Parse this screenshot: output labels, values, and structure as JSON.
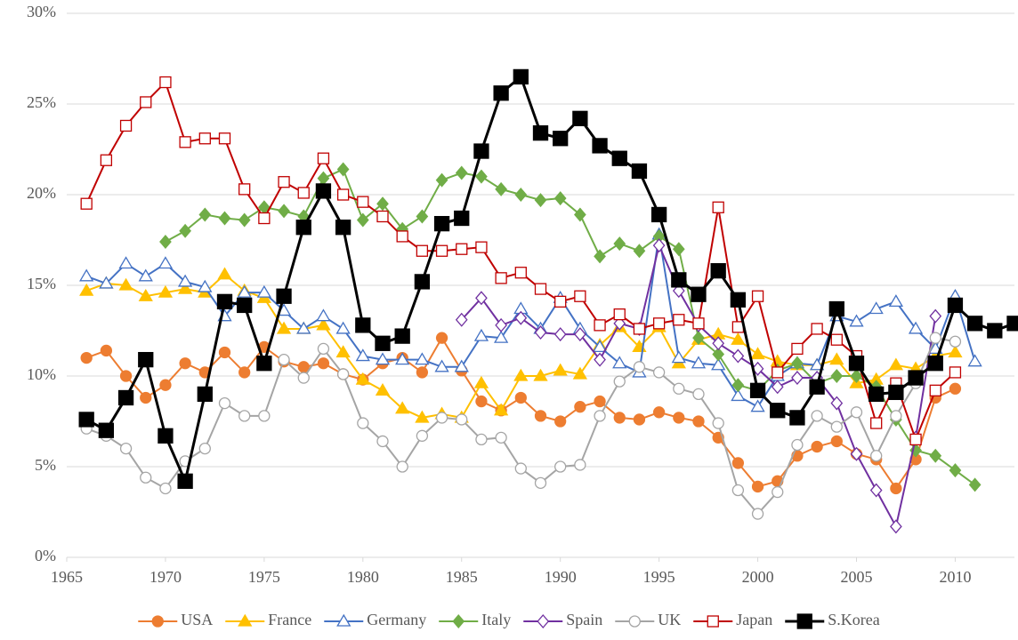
{
  "chart_data": {
    "type": "line",
    "x": [
      1966,
      1967,
      1968,
      1969,
      1970,
      1971,
      1972,
      1973,
      1974,
      1975,
      1976,
      1977,
      1978,
      1979,
      1980,
      1981,
      1982,
      1983,
      1984,
      1985,
      1986,
      1987,
      1988,
      1989,
      1990,
      1991,
      1992,
      1993,
      1994,
      1995,
      1996,
      1997,
      1998,
      1999,
      2000,
      2001,
      2002,
      2003,
      2004,
      2005,
      2006,
      2007,
      2008,
      2009,
      2010,
      2011,
      2012,
      2013
    ],
    "xlim": [
      1965,
      2013
    ],
    "xticks": [
      1965,
      1970,
      1975,
      1980,
      1985,
      1990,
      1995,
      2000,
      2005,
      2010
    ],
    "ylim": [
      0,
      30
    ],
    "yticks": [
      {
        "value": 0,
        "label": "0%"
      },
      {
        "value": 5,
        "label": "5%"
      },
      {
        "value": 10,
        "label": "10%"
      },
      {
        "value": 15,
        "label": "15%"
      },
      {
        "value": 20,
        "label": "20%"
      },
      {
        "value": 25,
        "label": "25%"
      },
      {
        "value": 30,
        "label": "30%"
      }
    ],
    "grid": true,
    "legend": "bottom",
    "series": [
      {
        "name": "USA",
        "color": "#ed7d31",
        "marker": "circle",
        "filled": true,
        "values": [
          11.0,
          11.4,
          10.0,
          8.8,
          9.5,
          10.7,
          10.2,
          11.3,
          10.2,
          11.6,
          10.8,
          10.5,
          10.7,
          10.1,
          9.8,
          10.7,
          11.0,
          10.2,
          12.1,
          10.3,
          8.6,
          8.1,
          8.8,
          7.8,
          7.5,
          8.3,
          8.6,
          7.7,
          7.6,
          8.0,
          7.7,
          7.5,
          6.6,
          5.2,
          3.9,
          4.2,
          5.6,
          6.1,
          6.4,
          5.7,
          5.4,
          3.8,
          5.4,
          8.8,
          9.3,
          null,
          null,
          null
        ]
      },
      {
        "name": "France",
        "color": "#ffc000",
        "marker": "triangle",
        "filled": true,
        "values": [
          14.7,
          15.1,
          15.0,
          14.4,
          14.6,
          14.8,
          14.6,
          15.6,
          14.7,
          14.3,
          12.6,
          12.6,
          12.8,
          11.3,
          9.8,
          9.2,
          8.2,
          7.7,
          7.9,
          7.7,
          9.6,
          8.1,
          10.0,
          10.0,
          10.3,
          10.1,
          11.7,
          12.7,
          11.6,
          12.7,
          10.7,
          12.0,
          12.3,
          12.0,
          11.2,
          10.8,
          10.6,
          10.6,
          10.9,
          9.6,
          9.8,
          10.6,
          10.4,
          11.1,
          11.3,
          null,
          null,
          null
        ]
      },
      {
        "name": "Germany",
        "color": "#4472c4",
        "marker": "triangle",
        "filled": false,
        "values": [
          15.5,
          15.1,
          16.2,
          15.5,
          16.2,
          15.2,
          14.9,
          13.3,
          14.6,
          14.6,
          13.6,
          12.6,
          13.3,
          12.6,
          11.1,
          10.9,
          10.9,
          10.9,
          10.5,
          10.5,
          12.2,
          12.1,
          13.7,
          12.6,
          14.3,
          12.6,
          11.6,
          10.7,
          10.2,
          17.8,
          11.0,
          10.7,
          10.6,
          8.9,
          8.3,
          10.0,
          10.7,
          10.6,
          13.3,
          13.0,
          13.7,
          14.1,
          12.6,
          11.5,
          14.4,
          10.8,
          null,
          null
        ]
      },
      {
        "name": "Italy",
        "color": "#70ad47",
        "marker": "diamond",
        "filled": true,
        "values": [
          null,
          null,
          null,
          null,
          17.4,
          18.0,
          18.9,
          18.7,
          18.6,
          19.3,
          19.1,
          18.8,
          20.9,
          21.4,
          18.6,
          19.5,
          18.1,
          18.8,
          20.8,
          21.2,
          21.0,
          20.3,
          20.0,
          19.7,
          19.8,
          18.9,
          16.6,
          17.3,
          16.9,
          17.7,
          17.0,
          12.1,
          11.2,
          9.5,
          9.2,
          10.3,
          10.7,
          9.6,
          10.0,
          10.0,
          9.4,
          7.6,
          5.9,
          5.6,
          4.8,
          4.0,
          null,
          null
        ]
      },
      {
        "name": "Spain",
        "color": "#7030a0",
        "marker": "diamond",
        "filled": false,
        "values": [
          null,
          null,
          null,
          null,
          null,
          null,
          null,
          null,
          null,
          null,
          null,
          null,
          null,
          null,
          null,
          null,
          null,
          null,
          null,
          13.1,
          14.3,
          12.8,
          13.2,
          12.4,
          12.3,
          12.3,
          10.9,
          12.9,
          12.6,
          17.2,
          14.7,
          12.8,
          11.8,
          11.1,
          10.4,
          9.4,
          9.9,
          9.9,
          8.5,
          5.7,
          3.7,
          1.7,
          6.6,
          13.3,
          null,
          null,
          null,
          null
        ]
      },
      {
        "name": "UK",
        "color": "#a5a5a5",
        "marker": "circle",
        "filled": false,
        "values": [
          7.1,
          6.7,
          6.0,
          4.4,
          3.8,
          5.3,
          6.0,
          8.5,
          7.8,
          7.8,
          10.9,
          9.9,
          11.5,
          10.1,
          7.4,
          6.4,
          5.0,
          6.7,
          7.7,
          7.6,
          6.5,
          6.6,
          4.9,
          4.1,
          5.0,
          5.1,
          7.8,
          9.7,
          10.5,
          10.2,
          9.3,
          9.0,
          7.4,
          3.7,
          2.4,
          3.6,
          6.2,
          7.8,
          7.2,
          8.0,
          5.6,
          7.8,
          9.6,
          12.1,
          11.9,
          null,
          null,
          null
        ]
      },
      {
        "name": "Japan",
        "color": "#c00000",
        "marker": "square",
        "filled": false,
        "values": [
          19.5,
          21.9,
          23.8,
          25.1,
          26.2,
          22.9,
          23.1,
          23.1,
          20.3,
          18.7,
          20.7,
          20.1,
          22.0,
          20.0,
          19.6,
          18.8,
          17.7,
          16.9,
          16.9,
          17.0,
          17.1,
          15.4,
          15.7,
          14.8,
          14.1,
          14.4,
          12.8,
          13.4,
          12.6,
          12.9,
          13.1,
          12.9,
          19.3,
          12.7,
          14.4,
          10.2,
          11.5,
          12.6,
          12.0,
          11.1,
          7.4,
          9.6,
          6.5,
          9.2,
          10.2,
          null,
          null,
          null
        ]
      },
      {
        "name": "S.Korea",
        "color": "#000000",
        "marker": "square",
        "filled": true,
        "values": [
          7.6,
          7.0,
          8.8,
          10.9,
          6.7,
          4.2,
          9.0,
          14.1,
          13.9,
          10.7,
          14.4,
          18.2,
          20.2,
          18.2,
          12.8,
          11.8,
          12.2,
          15.2,
          18.4,
          18.7,
          22.4,
          25.6,
          26.5,
          23.4,
          23.1,
          24.2,
          22.7,
          22.0,
          21.3,
          18.9,
          15.3,
          14.5,
          15.8,
          14.2,
          9.2,
          8.1,
          7.7,
          9.4,
          13.7,
          10.7,
          9.0,
          9.1,
          9.9,
          10.7,
          13.9,
          12.9,
          12.5,
          12.9
        ]
      }
    ]
  }
}
